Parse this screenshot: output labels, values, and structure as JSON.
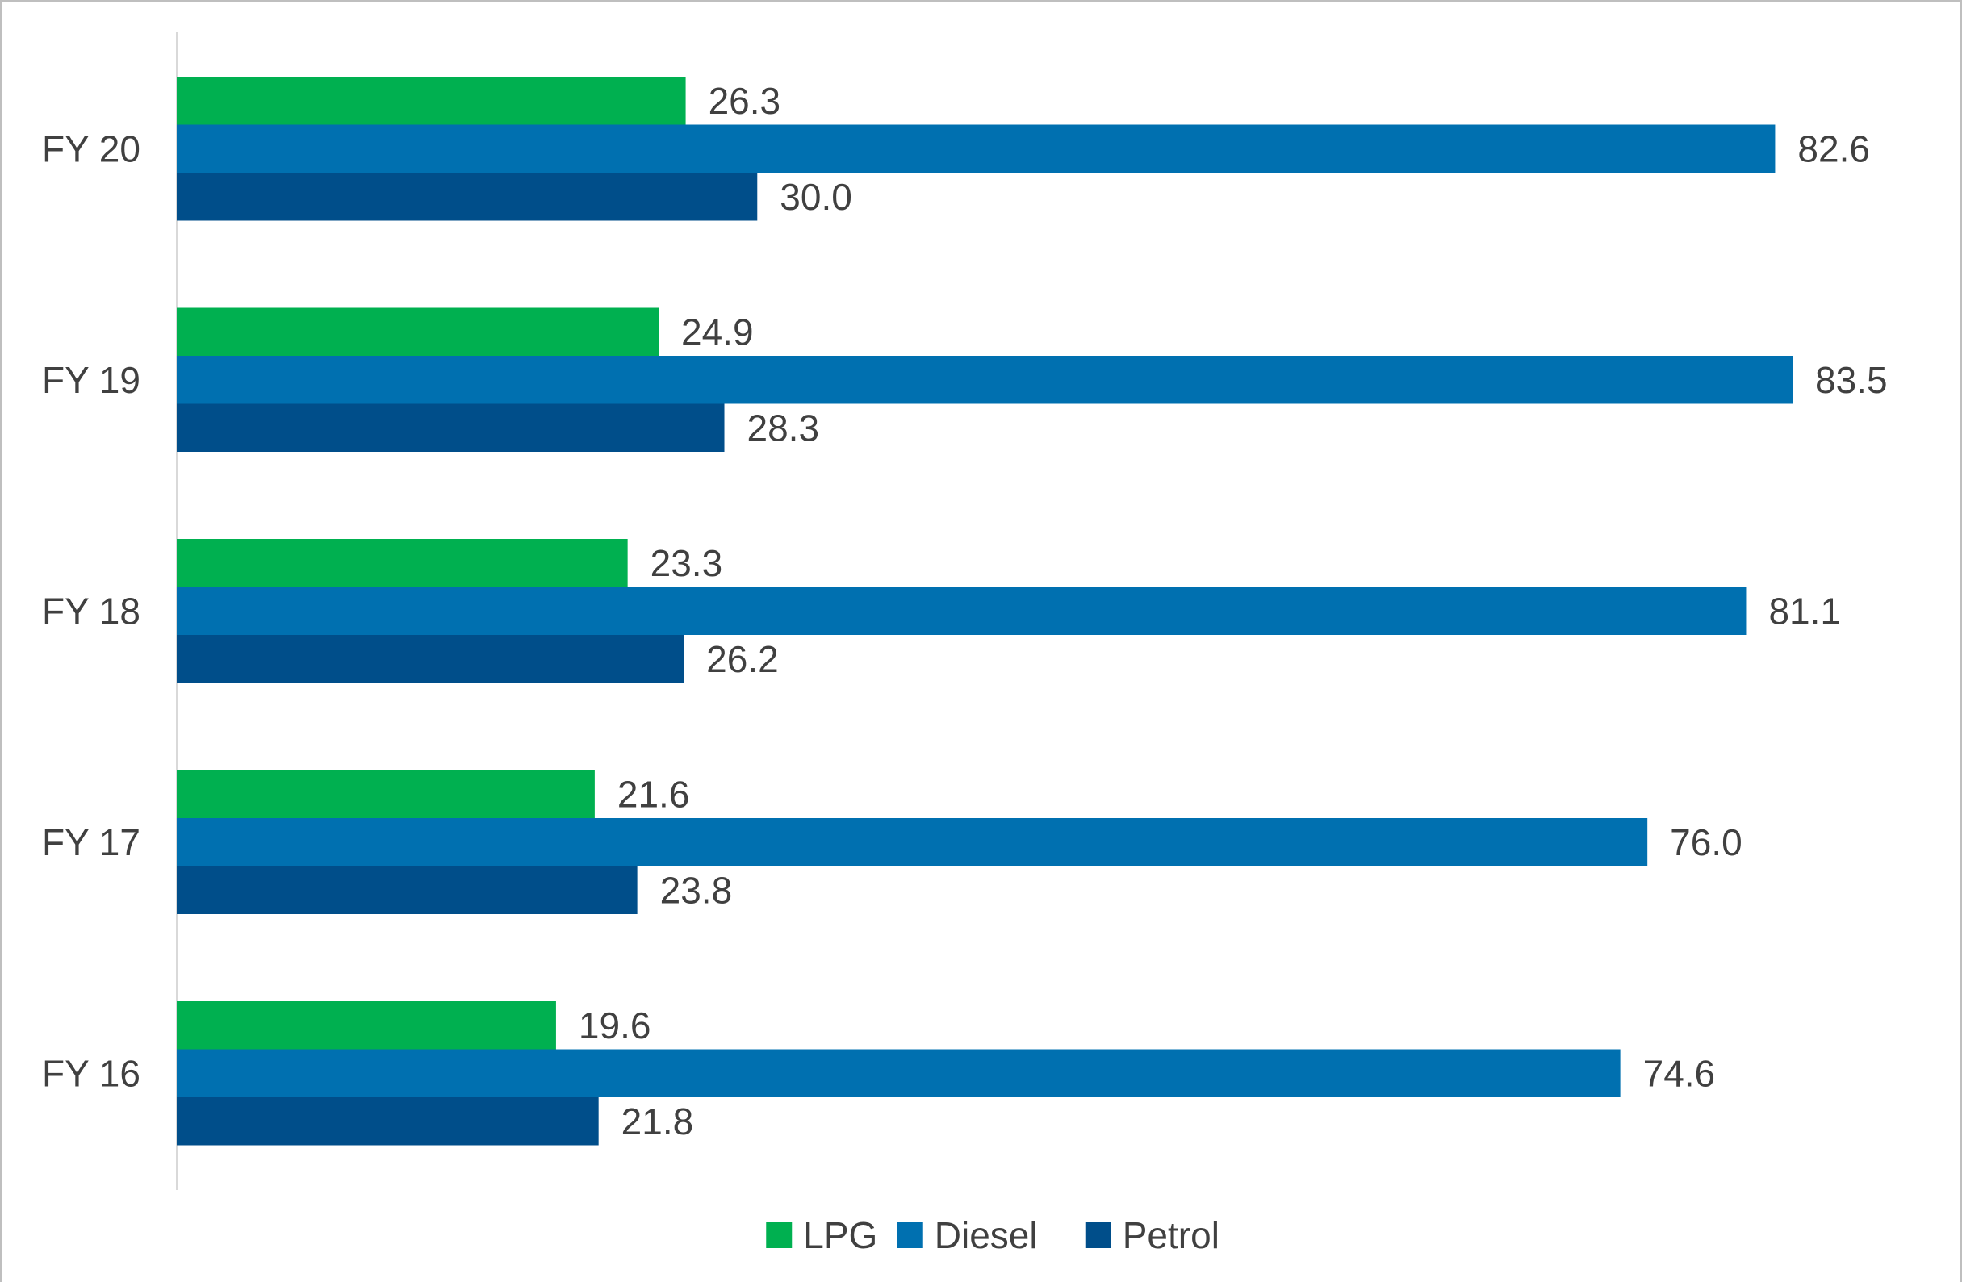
{
  "chart_data": {
    "type": "bar",
    "orientation": "horizontal",
    "title": "",
    "xlabel": "",
    "ylabel": "",
    "categories": [
      "FY 20",
      "FY 19",
      "FY 18",
      "FY 17",
      "FY 16"
    ],
    "series": [
      {
        "name": "LPG",
        "color": "#00b050",
        "values": [
          26.3,
          24.9,
          23.3,
          21.6,
          19.6
        ]
      },
      {
        "name": "Diesel",
        "color": "#0070b0",
        "values": [
          82.6,
          83.5,
          81.1,
          76.0,
          74.6
        ]
      },
      {
        "name": "Petrol",
        "color": "#004e8a",
        "values": [
          30.0,
          28.3,
          26.2,
          23.8,
          21.8
        ]
      }
    ],
    "xlim": [
      0,
      90
    ],
    "value_label_decimals": 1,
    "gridlines": false,
    "legend_position": "bottom",
    "frame_color": "#bfbfbf",
    "axis_color": "#d9d9d9",
    "text_color": "#404040"
  }
}
